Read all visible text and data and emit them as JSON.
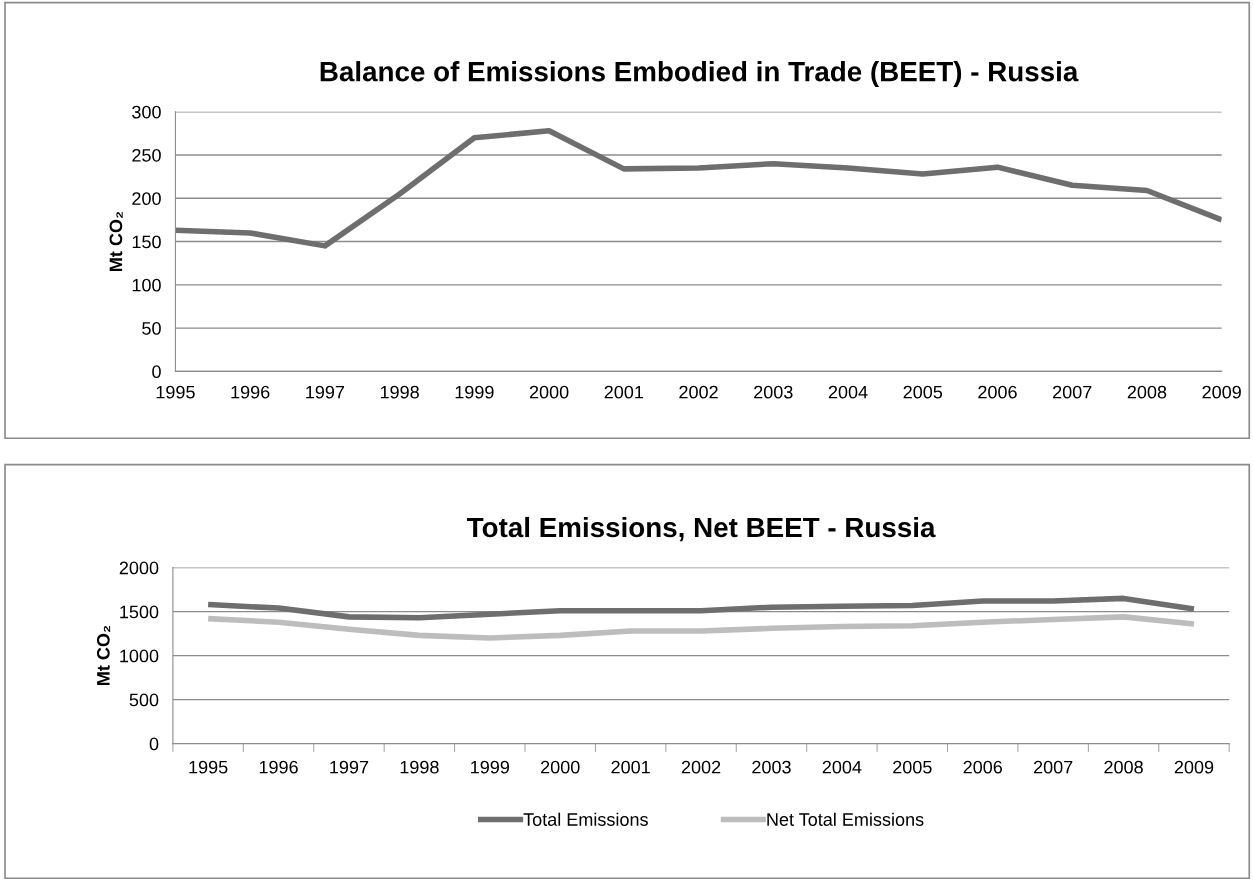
{
  "chart_data": [
    {
      "type": "line",
      "title": "Balance of Emissions Embodied in Trade (BEET) - Russia",
      "ylabel": "Mt CO₂",
      "categories": [
        "1995",
        "1996",
        "1997",
        "1998",
        "1999",
        "2000",
        "2001",
        "2002",
        "2003",
        "2004",
        "2005",
        "2006",
        "2007",
        "2008",
        "2009"
      ],
      "series": [
        {
          "color": "#6e6e6e",
          "values": [
            163,
            160,
            145,
            205,
            270,
            278,
            234,
            235,
            240,
            235,
            228,
            236,
            215,
            209,
            175
          ]
        }
      ],
      "ylim": [
        0,
        300
      ],
      "yticks": [
        0,
        50,
        100,
        150,
        200,
        250,
        300
      ],
      "grid": "y",
      "legend": false,
      "marker": "none",
      "line_style": "solid"
    },
    {
      "type": "line",
      "title": "Total Emissions, Net BEET - Russia",
      "ylabel": "Mt CO₂",
      "categories": [
        "1995",
        "1996",
        "1997",
        "1998",
        "1999",
        "2000",
        "2001",
        "2002",
        "2003",
        "2004",
        "2005",
        "2006",
        "2007",
        "2008",
        "2009"
      ],
      "series": [
        {
          "name": "Total Emissions",
          "color": "#6e6e6e",
          "values": [
            1580,
            1540,
            1440,
            1430,
            1470,
            1510,
            1510,
            1510,
            1550,
            1560,
            1570,
            1620,
            1620,
            1650,
            1530
          ]
        },
        {
          "name": "Net Total Emissions",
          "color": "#bdbdbd",
          "values": [
            1420,
            1380,
            1300,
            1230,
            1200,
            1230,
            1280,
            1280,
            1310,
            1330,
            1340,
            1380,
            1410,
            1440,
            1360
          ]
        }
      ],
      "ylim": [
        0,
        2000
      ],
      "yticks": [
        0,
        500,
        1000,
        1500,
        2000
      ],
      "grid": "y",
      "legend": "bottom",
      "marker": "none",
      "line_style": "solid"
    }
  ]
}
